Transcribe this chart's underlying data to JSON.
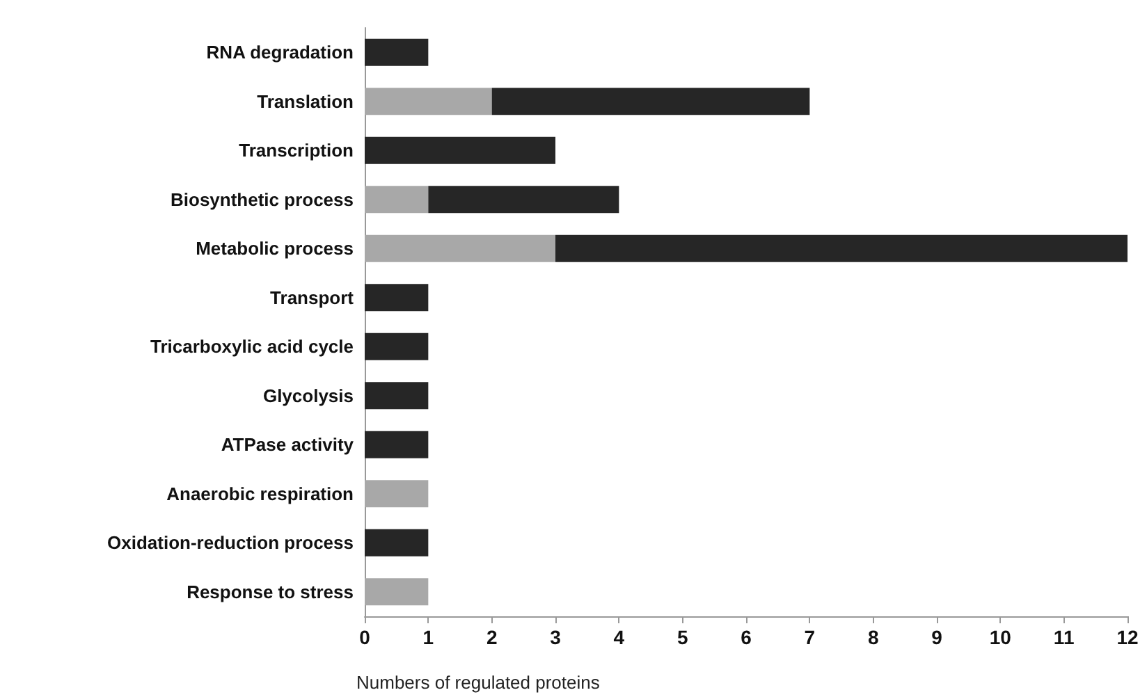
{
  "chart_data": {
    "type": "bar",
    "orientation": "horizontal",
    "stacked": true,
    "xlabel": "Numbers of regulated proteins",
    "categories": [
      "RNA degradation",
      "Translation",
      "Transcription",
      "Biosynthetic process",
      "Metabolic process",
      "Transport",
      "Tricarboxylic acid cycle",
      "Glycolysis",
      "ATPase activity",
      "Anaerobic respiration",
      "Oxidation-reduction process",
      "Response to stress"
    ],
    "series": [
      {
        "color": "#a8a8a8",
        "values": [
          0,
          2,
          0,
          1,
          3,
          0,
          0,
          0,
          0,
          1,
          0,
          1
        ]
      },
      {
        "color": "#262626",
        "values": [
          1,
          5,
          3,
          3,
          9,
          1,
          1,
          1,
          1,
          0,
          1,
          0
        ]
      }
    ],
    "xlim": [
      0,
      12
    ],
    "xticks": [
      0,
      1,
      2,
      3,
      4,
      5,
      6,
      7,
      8,
      9,
      10,
      11,
      12
    ],
    "grid": false
  }
}
